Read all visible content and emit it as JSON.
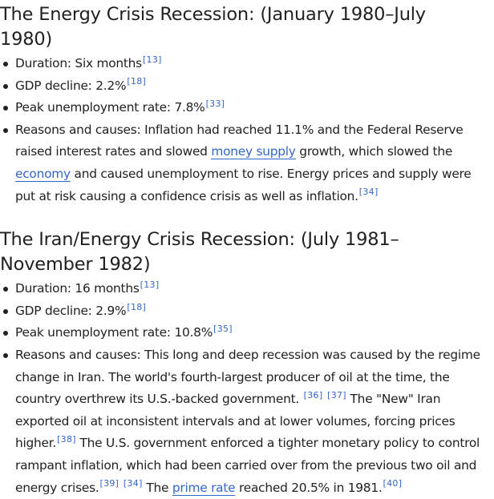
{
  "sections": [
    {
      "heading": "The Energy Crisis Recession: (January 1980–July 1980)",
      "duration_text": "Duration: Six months",
      "duration_ref": "[13]",
      "gdp_text": "GDP decline: 2.2%",
      "gdp_ref": "[18]",
      "unemployment_text": "Peak unemployment rate: 7.8%",
      "unemployment_ref": "[33]",
      "reasons": {
        "part1": "Reasons and causes: Inflation had reached 11.1% and the Federal Reserve raised interest rates and slowed ",
        "link1": "money supply",
        "part2": " growth, which slowed the ",
        "link2": "economy",
        "part3": " and caused unemployment to rise. Energy prices and supply were put at risk causing a confidence crisis as well as inflation.",
        "ref1": "[34]"
      }
    },
    {
      "heading": "The Iran/Energy Crisis Recession: (July 1981–November 1982)",
      "duration_text": "Duration: 16 months",
      "duration_ref": "[13]",
      "gdp_text": "GDP decline: 2.9%",
      "gdp_ref": "[18]",
      "unemployment_text": "Peak unemployment rate: 10.8%",
      "unemployment_ref": "[35]",
      "reasons": {
        "part1": "Reasons and causes: This long and deep recession was caused by the regime change in Iran. The world's fourth-largest producer of oil at the time, the country overthrew its U.S.-backed government.",
        "ref1": "[36]",
        "ref2": "[37]",
        "part2": " The \"New\" Iran exported oil at inconsistent intervals and at lower volumes, forcing prices higher.",
        "ref3": "[38]",
        "part3": " The U.S. government enforced a tighter monetary policy to control rampant inflation, which had been carried over from the previous two oil and energy crises.",
        "ref4": "[39]",
        "ref5": "[34]",
        "part4": " The ",
        "link1": "prime rate",
        "part5": " reached 20.5% in 1981.",
        "ref6": "[40]"
      }
    }
  ]
}
